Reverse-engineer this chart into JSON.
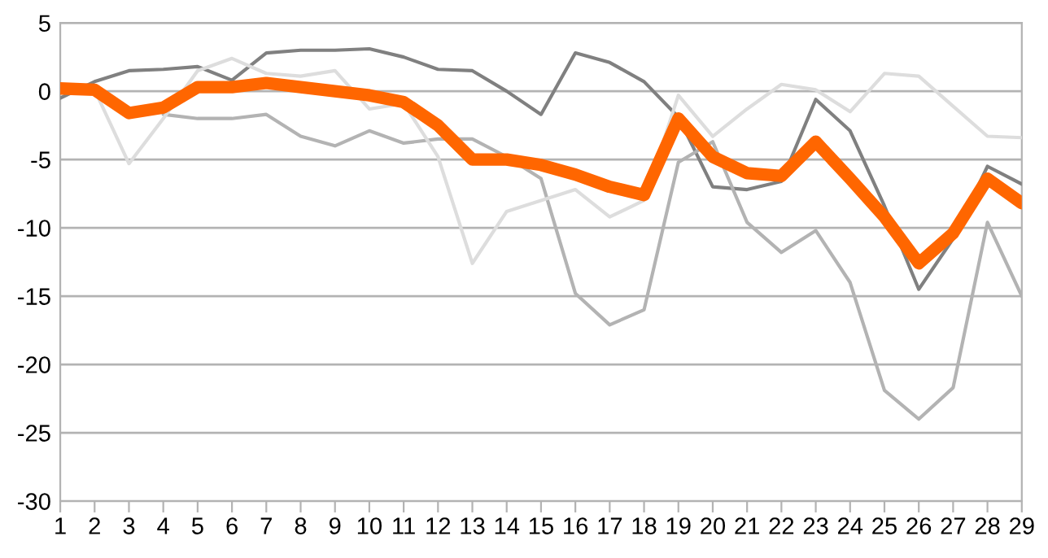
{
  "chart_data": {
    "type": "line",
    "categories": [
      "1",
      "2",
      "3",
      "4",
      "5",
      "6",
      "7",
      "8",
      "9",
      "10",
      "11",
      "12",
      "13",
      "14",
      "15",
      "16",
      "17",
      "18",
      "19",
      "20",
      "21",
      "22",
      "23",
      "24",
      "25",
      "26",
      "27",
      "28",
      "29"
    ],
    "ylim": [
      -30,
      5
    ],
    "yticks": [
      -30,
      -25,
      -20,
      -15,
      -10,
      -5,
      0,
      5
    ],
    "grid": "y",
    "marker": "none",
    "line_style": "solid",
    "series": [
      {
        "color": "#808080",
        "values": [
          -0.5,
          0.7,
          1.5,
          1.6,
          1.8,
          0.8,
          2.8,
          3,
          3,
          3.1,
          2.5,
          1.6,
          1.5,
          0,
          -1.7,
          2.8,
          2.1,
          0.7,
          -1.9,
          -7,
          -7.2,
          -6.6,
          -0.6,
          -2.9,
          -8.4,
          -14.5,
          -10.8,
          -5.5,
          -6.8
        ]
      },
      {
        "color": "#b3b3b3",
        "values": [
          null,
          null,
          null,
          -1.7,
          -2,
          -2,
          -1.7,
          -3.3,
          -4,
          -2.9,
          -3.8,
          -3.5,
          -3.5,
          -4.8,
          -6.4,
          -14.8,
          -17.1,
          -16,
          -5.2,
          -3.7,
          -9.6,
          -11.8,
          -10.2,
          -14,
          -21.9,
          -24,
          -21.7,
          -9.6,
          -15
        ]
      },
      {
        "color": "#dddddd",
        "values": [
          0,
          0.1,
          -5.3,
          -2,
          1.5,
          2.4,
          1.3,
          1.1,
          1.5,
          -1.3,
          -0.9,
          -4.8,
          -12.6,
          -8.8,
          -8,
          -7.2,
          -9.2,
          -8,
          -0.3,
          -3.3,
          -1.3,
          0.5,
          0.1,
          -1.5,
          1.3,
          1.1,
          -1.1,
          -3.3,
          -3.4
        ]
      },
      {
        "color": "#ff6600",
        "values": [
          0.2,
          0.1,
          -1.6,
          -1.2,
          0.3,
          0.3,
          0.6,
          0.3,
          0,
          -0.3,
          -0.8,
          -2.5,
          -5,
          -5,
          -5.4,
          -6.1,
          -7,
          -7.6,
          -2,
          -4.8,
          -6,
          -6.2,
          -3.7,
          -6.4,
          -9.2,
          -12.6,
          -10.4,
          -6.4,
          -8.2
        ]
      }
    ]
  }
}
